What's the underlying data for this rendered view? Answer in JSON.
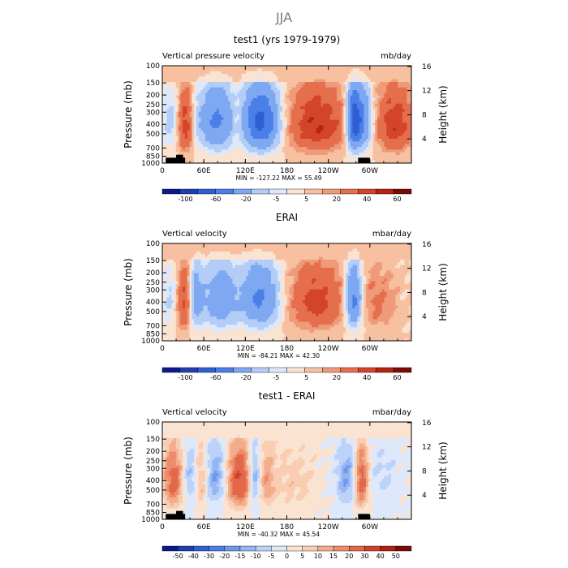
{
  "figure": {
    "title": "JJA"
  },
  "palette": {
    "main": [
      "#0b1a8a",
      "#1f3fb0",
      "#2f5fd3",
      "#4a7fe8",
      "#7ea8f2",
      "#b3cdf7",
      "#dde8fb",
      "#fbe3d2",
      "#f6c0a1",
      "#ef9a78",
      "#e56e4c",
      "#d44428",
      "#b52214",
      "#7a0b06"
    ],
    "diff": [
      "#0b1a8a",
      "#1f3fb0",
      "#2f5fd3",
      "#4a7fe8",
      "#6e98ee",
      "#95b6f4",
      "#bcd2f8",
      "#dde8fb",
      "#fbe3d2",
      "#f8cdb2",
      "#f3ad8d",
      "#ec8c69",
      "#e2684a",
      "#d1402a",
      "#b11f13",
      "#7a0b06"
    ]
  },
  "chart_data": [
    {
      "type": "heatmap",
      "title": "test1 (yrs 1979-1979)",
      "left_label": "Vertical pressure velocity",
      "right_label": "mb/day",
      "ylabel": "Pressure (mb)",
      "ylabel_right": "Height (km)",
      "x_ticks": [
        "0",
        "60E",
        "120E",
        "180",
        "120W",
        "60W"
      ],
      "x_tick_values": [
        0,
        60,
        120,
        180,
        240,
        300
      ],
      "xlim": [
        0,
        360
      ],
      "y_ticks": [
        "100",
        "150",
        "200",
        "250",
        "300",
        "400",
        "500",
        "700",
        "850",
        "1000"
      ],
      "y_tick_values": [
        100,
        150,
        200,
        250,
        300,
        400,
        500,
        700,
        850,
        1000
      ],
      "ylim": [
        1000,
        100
      ],
      "y_log": true,
      "y_right_ticks": [
        "16",
        "12",
        "8",
        "4"
      ],
      "y_right_values": [
        16,
        12,
        8,
        4
      ],
      "stats": "MIN = -127.22   MAX =  55.49",
      "min": -127.22,
      "max": 55.49,
      "colorbar_labels": [
        "-100",
        "-60",
        "-20",
        "-5",
        "5",
        "20",
        "40",
        "60"
      ],
      "palette": "main",
      "ascent_regions": [
        {
          "lon": [
            2,
            22
          ],
          "amp": -12
        },
        {
          "lon": [
            45,
            55
          ],
          "amp": -6
        },
        {
          "lon": [
            58,
            100
          ],
          "amp": -40
        },
        {
          "lon": [
            120,
            165
          ],
          "amp": -60
        },
        {
          "lon": [
            270,
            285
          ],
          "amp": -70
        },
        {
          "lon": [
            285,
            300
          ],
          "amp": -30
        }
      ],
      "descent_regions": [
        {
          "lon": [
            25,
            42
          ],
          "amp": 28
        },
        {
          "lon": [
            103,
            113
          ],
          "amp": 10
        },
        {
          "lon": [
            185,
            262
          ],
          "amp": 32
        },
        {
          "lon": [
            315,
            358
          ],
          "amp": 30
        }
      ],
      "topography": [
        {
          "lon": [
            5,
            33
          ],
          "p": 880
        },
        {
          "lon": [
            20,
            30
          ],
          "p": 820
        },
        {
          "lon": [
            283,
            300
          ],
          "p": 880
        }
      ]
    },
    {
      "type": "heatmap",
      "title": "ERAI",
      "left_label": "Vertical velocity",
      "right_label": "mbar/day",
      "ylabel": "Pressure (mb)",
      "ylabel_right": "Height (km)",
      "x_ticks": [
        "0",
        "60E",
        "120E",
        "180",
        "120W",
        "60W"
      ],
      "x_tick_values": [
        0,
        60,
        120,
        180,
        240,
        300
      ],
      "xlim": [
        0,
        360
      ],
      "y_ticks": [
        "100",
        "150",
        "200",
        "250",
        "300",
        "400",
        "500",
        "700",
        "850",
        "1000"
      ],
      "y_tick_values": [
        100,
        150,
        200,
        250,
        300,
        400,
        500,
        700,
        850,
        1000
      ],
      "ylim": [
        1000,
        100
      ],
      "y_log": true,
      "y_right_ticks": [
        "16",
        "12",
        "8",
        "4"
      ],
      "y_right_values": [
        16,
        12,
        8,
        4
      ],
      "stats": "MIN = -84.21   MAX =  42.30",
      "min": -84.21,
      "max": 42.3,
      "colorbar_labels": [
        "-100",
        "-60",
        "-20",
        "-5",
        "5",
        "20",
        "40",
        "60"
      ],
      "palette": "main",
      "ascent_regions": [
        {
          "lon": [
            2,
            20
          ],
          "amp": -10
        },
        {
          "lon": [
            42,
            56
          ],
          "amp": -25
        },
        {
          "lon": [
            62,
            105
          ],
          "amp": -32
        },
        {
          "lon": [
            118,
            165
          ],
          "amp": -40
        },
        {
          "lon": [
            268,
            285
          ],
          "amp": -45
        }
      ],
      "descent_regions": [
        {
          "lon": [
            24,
            40
          ],
          "amp": 25
        },
        {
          "lon": [
            185,
            262
          ],
          "amp": 25
        },
        {
          "lon": [
            290,
            335
          ],
          "amp": 12
        }
      ],
      "topography": []
    },
    {
      "type": "heatmap",
      "title": "test1 - ERAI",
      "left_label": "Vertical velocity",
      "right_label": "mbar/day",
      "ylabel": "Pressure (mb)",
      "ylabel_right": "Height (km)",
      "x_ticks": [
        "0",
        "60E",
        "120E",
        "180",
        "120W",
        "60W"
      ],
      "x_tick_values": [
        0,
        60,
        120,
        180,
        240,
        300
      ],
      "xlim": [
        0,
        360
      ],
      "y_ticks": [
        "100",
        "150",
        "200",
        "250",
        "300",
        "400",
        "500",
        "700",
        "850",
        "1000"
      ],
      "y_tick_values": [
        100,
        150,
        200,
        250,
        300,
        400,
        500,
        700,
        850,
        1000
      ],
      "ylim": [
        1000,
        100
      ],
      "y_log": true,
      "y_right_ticks": [
        "16",
        "12",
        "8",
        "4"
      ],
      "y_right_values": [
        16,
        12,
        8,
        4
      ],
      "stats": "MIN = -40.32   MAX =  45.54",
      "min": -40.32,
      "max": 45.54,
      "colorbar_labels": [
        "-50",
        "-40",
        "-30",
        "-20",
        "-15",
        "-10",
        "-5",
        "0",
        "5",
        "10",
        "15",
        "20",
        "30",
        "40",
        "50"
      ],
      "palette": "diff",
      "ascent_regions": [
        {
          "lon": [
            28,
            48
          ],
          "amp": -12
        },
        {
          "lon": [
            65,
            90
          ],
          "amp": -14
        },
        {
          "lon": [
            128,
            140
          ],
          "amp": -18
        },
        {
          "lon": [
            255,
            280
          ],
          "amp": -14
        },
        {
          "lon": [
            295,
            340
          ],
          "amp": -5
        }
      ],
      "descent_regions": [
        {
          "lon": [
            4,
            30
          ],
          "amp": 26
        },
        {
          "lon": [
            50,
            62
          ],
          "amp": 14
        },
        {
          "lon": [
            96,
            126
          ],
          "amp": 32
        },
        {
          "lon": [
            140,
            160
          ],
          "amp": 14
        },
        {
          "lon": [
            160,
            220
          ],
          "amp": 8
        },
        {
          "lon": [
            280,
            295
          ],
          "amp": 30
        }
      ],
      "topography": [
        {
          "lon": [
            5,
            33
          ],
          "p": 880
        },
        {
          "lon": [
            20,
            30
          ],
          "p": 820
        },
        {
          "lon": [
            283,
            300
          ],
          "p": 880
        }
      ]
    }
  ]
}
